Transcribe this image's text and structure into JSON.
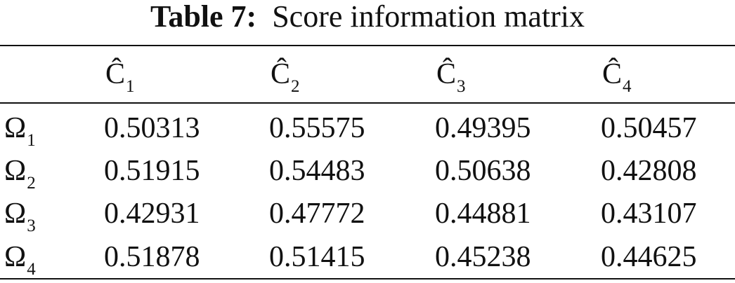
{
  "caption": {
    "label": "Table 7:",
    "text": "Score information matrix"
  },
  "table": {
    "header": [
      {
        "base": "Ĉ",
        "sub": "1"
      },
      {
        "base": "Ĉ",
        "sub": "2"
      },
      {
        "base": "Ĉ",
        "sub": "3"
      },
      {
        "base": "Ĉ",
        "sub": "4"
      }
    ],
    "rows": [
      {
        "label": {
          "base": "Ω",
          "sub": "1"
        },
        "cells": [
          "0.50313",
          "0.55575",
          "0.49395",
          "0.50457"
        ]
      },
      {
        "label": {
          "base": "Ω",
          "sub": "2"
        },
        "cells": [
          "0.51915",
          "0.54483",
          "0.50638",
          "0.42808"
        ]
      },
      {
        "label": {
          "base": "Ω",
          "sub": "3"
        },
        "cells": [
          "0.42931",
          "0.47772",
          "0.44881",
          "0.43107"
        ]
      },
      {
        "label": {
          "base": "Ω",
          "sub": "4"
        },
        "cells": [
          "0.51878",
          "0.51415",
          "0.45238",
          "0.44625"
        ]
      }
    ]
  }
}
